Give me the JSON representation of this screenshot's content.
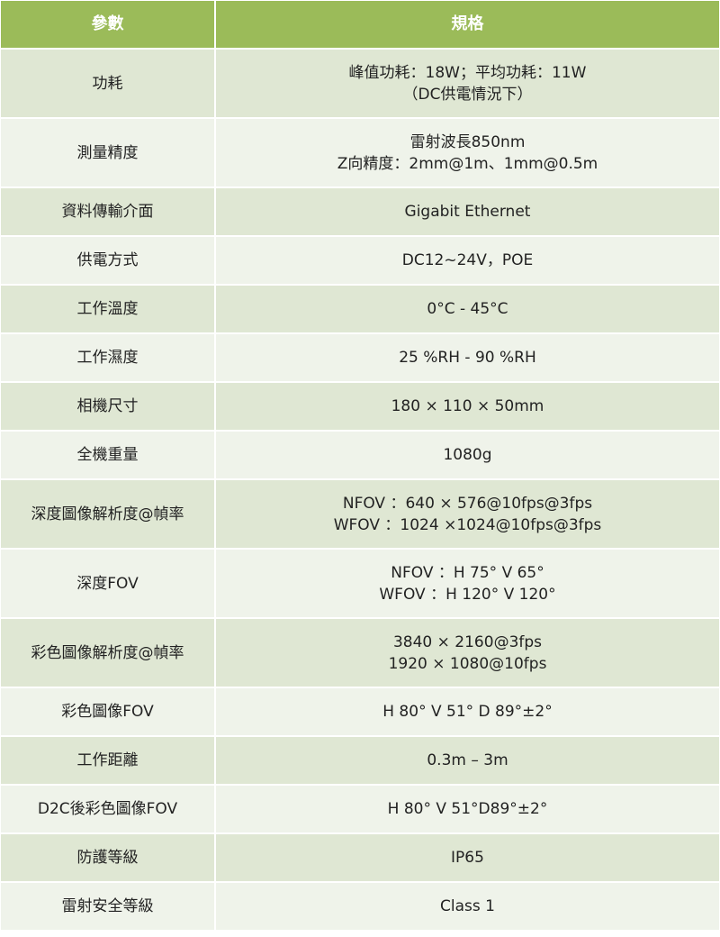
{
  "header": {
    "param": "參數",
    "spec": "規格"
  },
  "rows": [
    {
      "param": "功耗",
      "spec": [
        "峰值功耗：18W；平均功耗：11W",
        "（DC供電情況下）"
      ]
    },
    {
      "param": "測量精度",
      "spec": [
        "雷射波長850nm",
        "Z向精度：2mm@1m、1mm@0.5m"
      ]
    },
    {
      "param": "資料傳輸介面",
      "spec": [
        "Gigabit Ethernet"
      ]
    },
    {
      "param": "供電方式",
      "spec": [
        "DC12~24V，POE"
      ]
    },
    {
      "param": "工作溫度",
      "spec": [
        "0°C - 45°C"
      ]
    },
    {
      "param": "工作濕度",
      "spec": [
        "25 %RH - 90 %RH"
      ]
    },
    {
      "param": "相機尺寸",
      "spec": [
        "180 × 110 × 50mm"
      ]
    },
    {
      "param": "全機重量",
      "spec": [
        "1080g"
      ]
    },
    {
      "param": "深度圖像解析度@幀率",
      "spec": [
        "NFOV ：640 × 576@10fps@3fps",
        "WFOV ：1024 ×1024@10fps@3fps"
      ]
    },
    {
      "param": "深度FOV",
      "spec": [
        "NFOV ：H 75° V 65°",
        "WFOV ：H 120° V 120°"
      ]
    },
    {
      "param": "彩色圖像解析度@幀率",
      "spec": [
        "3840 × 2160@3fps",
        "1920 × 1080@10fps"
      ]
    },
    {
      "param": "彩色圖像FOV",
      "spec": [
        "H 80° V 51° D 89°±2°"
      ]
    },
    {
      "param": "工作距離",
      "spec": [
        "0.3m – 3m"
      ]
    },
    {
      "param": "D2C後彩色圖像FOV",
      "spec": [
        "H 80° V 51°D89°±2°"
      ]
    },
    {
      "param": "防護等級",
      "spec": [
        "IP65"
      ]
    },
    {
      "param": "雷射安全等級",
      "spec": [
        "Class 1"
      ]
    }
  ],
  "colors": {
    "header": "#9bbb59",
    "row_odd": "#dfe7d3",
    "row_even": "#eff3ea"
  }
}
